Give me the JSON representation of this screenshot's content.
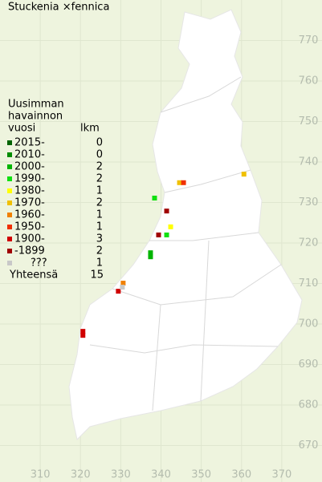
{
  "title": "Stuckenia ×fennica",
  "legend": {
    "heading": [
      "Uusimman",
      "havainnon",
      "vuosi"
    ],
    "count_heading": "lkm",
    "periods": [
      {
        "label": "2015-",
        "count": 0,
        "color": "#006400",
        "points": []
      },
      {
        "label": "2010-",
        "count": 0,
        "color": "#008c00",
        "points": []
      },
      {
        "label": "2000-",
        "count": 2,
        "color": "#00b400",
        "points": [
          [
            337.4,
            717.6
          ],
          [
            337.4,
            716.6
          ]
        ]
      },
      {
        "label": "1990-",
        "count": 2,
        "color": "#10e010",
        "points": [
          [
            338.4,
            731.1
          ],
          [
            341.4,
            722.0
          ]
        ]
      },
      {
        "label": "1980-",
        "count": 1,
        "color": "#ffff00",
        "points": [
          [
            342.4,
            724.0
          ]
        ]
      },
      {
        "label": "1970-",
        "count": 2,
        "color": "#f0c000",
        "points": [
          [
            360.6,
            737.0
          ],
          [
            344.6,
            734.9
          ]
        ]
      },
      {
        "label": "1960-",
        "count": 1,
        "color": "#f08000",
        "points": [
          [
            330.6,
            710.1
          ]
        ]
      },
      {
        "label": "1950-",
        "count": 1,
        "color": "#f03000",
        "points": [
          [
            345.6,
            734.9
          ]
        ]
      },
      {
        "label": "1900-",
        "count": 3,
        "color": "#d00000",
        "points": [
          [
            320.6,
            698.2
          ],
          [
            320.6,
            697.2
          ],
          [
            329.4,
            708.1
          ]
        ]
      },
      {
        "label": "-1899",
        "count": 2,
        "color": "#a00000",
        "points": [
          [
            341.4,
            727.9
          ],
          [
            339.4,
            722.0
          ]
        ]
      },
      {
        "label": "???",
        "count": 1,
        "color": "#c8c8c8",
        "points": [
          [
            330.4,
            709.1
          ]
        ]
      }
    ],
    "total_label": "Yhteensä",
    "total": 15
  },
  "axes": {
    "xlim": [
      300,
      380
    ],
    "ylim": [
      661,
      780
    ],
    "xticks": [
      310,
      320,
      330,
      340,
      350,
      360,
      370
    ],
    "yticks": [
      670,
      680,
      690,
      700,
      710,
      720,
      730,
      740,
      750,
      760,
      770
    ]
  }
}
